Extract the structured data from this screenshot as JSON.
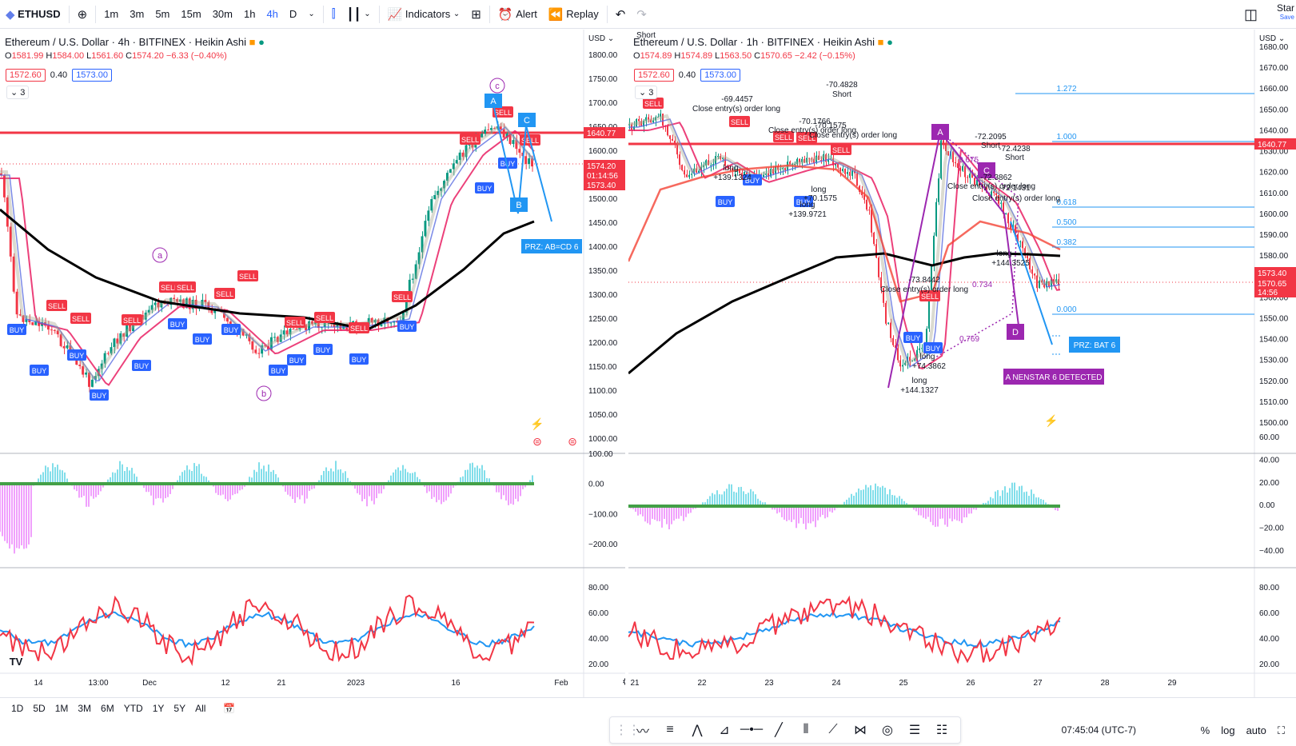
{
  "toolbar": {
    "symbol": "ETHUSD",
    "intervals": [
      "1m",
      "3m",
      "5m",
      "15m",
      "30m",
      "1h",
      "4h",
      "D"
    ],
    "active_interval": "4h",
    "indicators_label": "Indicators",
    "alert_label": "Alert",
    "replay_label": "Replay",
    "star_label": "Star",
    "save_label": "Save"
  },
  "left": {
    "title": "Ethereum / U.S. Dollar · 4h · BITFINEX · Heikin Ashi",
    "ohlc": {
      "o": "1581.99",
      "h": "1584.00",
      "l": "1561.60",
      "c": "1574.20",
      "chg": "−6.33 (−0.40%)"
    },
    "bid": "1572.60",
    "spread": "0.40",
    "ask": "1573.00",
    "collapse": "3",
    "currency": "USD",
    "price_axis": [
      "1800.00",
      "1750.00",
      "1700.00",
      "1650.00",
      "1600.00",
      "1550.00",
      "1500.00",
      "1450.00",
      "1400.00",
      "1350.00",
      "1300.00",
      "1250.00",
      "1200.00",
      "1150.00",
      "1100.00",
      "1050.00",
      "1000.00"
    ],
    "price_tags": [
      {
        "label": "1640.77",
        "color": "#f23645"
      },
      {
        "label": "1574.20",
        "color": "#f23645"
      },
      {
        "label": "01:14:56",
        "color": "#f23645"
      },
      {
        "label": "1573.40",
        "color": "#f23645"
      }
    ],
    "macd_axis": [
      "100.00",
      "0.00",
      "−100.00",
      "−200.00"
    ],
    "rsi_axis": [
      "80.00",
      "60.00",
      "40.00",
      "20.00"
    ],
    "time_axis": [
      "14",
      "13:00",
      "Dec",
      "12",
      "21",
      "2023",
      "16",
      "Feb"
    ],
    "markers": {
      "a": "a",
      "b": "b",
      "c": "c",
      "A": "A",
      "B": "B",
      "C": "C"
    },
    "prz_label": "PRZ: AB=CD 6",
    "buy": "BUY",
    "sell": "SELL"
  },
  "right": {
    "title": "Ethereum / U.S. Dollar · 1h · BITFINEX · Heikin Ashi",
    "ohlc": {
      "o": "1574.89",
      "h": "1574.89",
      "l": "1563.50",
      "c": "1570.65",
      "chg": "−2.42 (−0.15%)"
    },
    "bid": "1572.60",
    "spread": "0.40",
    "ask": "1573.00",
    "collapse": "3",
    "currency": "USD",
    "price_axis": [
      "1680.00",
      "1670.00",
      "1660.00",
      "1650.00",
      "1640.00",
      "1630.00",
      "1620.00",
      "1610.00",
      "1600.00",
      "1590.00",
      "1580.00",
      "1570.00",
      "1560.00",
      "1550.00",
      "1540.00",
      "1530.00",
      "1520.00",
      "1510.00",
      "1500.00"
    ],
    "price_tags": [
      {
        "label": "1640.77",
        "color": "#f23645"
      },
      {
        "label": "1573.40",
        "color": "#f23645"
      },
      {
        "label": "1570.65",
        "color": "#f23645"
      },
      {
        "label": "14:56",
        "color": "#f23645"
      }
    ],
    "macd_axis": [
      "60.00",
      "40.00",
      "20.00",
      "0.00",
      "−20.00",
      "−40.00"
    ],
    "rsi_axis": [
      "80.00",
      "60.00",
      "40.00",
      "20.00"
    ],
    "time_axis": [
      "21",
      "22",
      "23",
      "24",
      "25",
      "26",
      "27",
      "28",
      "29"
    ],
    "fib_levels": [
      "1.272",
      "1.000",
      "0.618",
      "0.500",
      "0.382",
      "0.000"
    ],
    "fib_ratios": [
      "0.675",
      "0.734",
      "0.769"
    ],
    "harmonic": {
      "A": "A",
      "C": "C",
      "D": "D"
    },
    "prz_label": "PRZ: BAT 6",
    "detected_label": "A NENSTAR 6 DETECTED",
    "annotations": {
      "short1": "Short",
      "a1": "-70.4828",
      "a1b": "Short",
      "a2": "-69.4457",
      "close1": "Close entry(s) order long",
      "a3": "-70.1766",
      "a4": "-70.1575",
      "close2": "Close entry(s) order long",
      "close3": "Close entry(s) order long",
      "long1": "long",
      "long1v": "+139.1324",
      "long2": "long",
      "long2v": "+70.1575",
      "long3": "long",
      "long3v": "+139.9721",
      "a5": "-72.2095",
      "a5b": "Short",
      "a6": "-72.4238",
      "a6b": "Short",
      "a7": "-72.3862",
      "close4": "Close entry(s) order long",
      "a8": "-72.1431",
      "close5": "Close entry(s) order long",
      "long4": "long",
      "long4v": "+144.3525",
      "a9": "-73.8442",
      "close6": "Close entry(s) order long",
      "long5": "long",
      "long5v": "+74.3862",
      "long6": "long",
      "long6v": "+144.1327"
    },
    "buy": "BUY",
    "sell": "SELL"
  },
  "bottom": {
    "ranges": [
      "1D",
      "5D",
      "1M",
      "3M",
      "6M",
      "YTD",
      "1Y",
      "5Y",
      "All"
    ],
    "time": "07:45:04 (UTC-7)",
    "percent": "%",
    "log": "log",
    "auto": "auto"
  },
  "colors": {
    "up": "#089981",
    "down": "#f23645",
    "accent": "#2962ff",
    "harmonic": "#9c27b0"
  }
}
